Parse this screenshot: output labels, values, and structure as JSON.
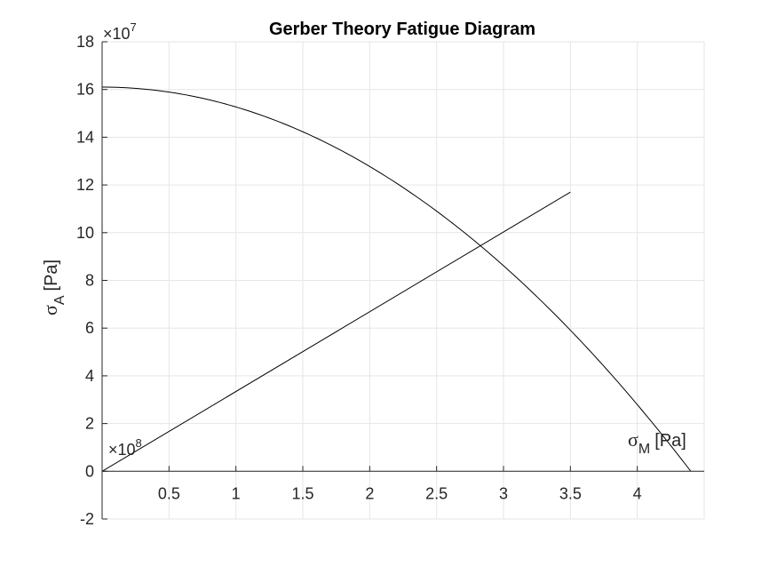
{
  "chart_data": {
    "type": "line",
    "title": "Gerber Theory Fatigue Diagram",
    "xlabel": {
      "symbol": "σ",
      "subscript": "M",
      "unit": "[Pa]"
    },
    "ylabel": {
      "symbol": "σ",
      "subscript": "A",
      "unit": "[Pa]"
    },
    "x_multiplier": {
      "prefix": "×10",
      "exponent": "8"
    },
    "y_multiplier": {
      "prefix": "×10",
      "exponent": "7"
    },
    "xlim": [
      0,
      4.5
    ],
    "ylim": [
      -2,
      18
    ],
    "xticks": [
      0.5,
      1,
      1.5,
      2,
      2.5,
      3,
      3.5,
      4
    ],
    "xtick_labels": [
      "0.5",
      "1",
      "1.5",
      "2",
      "2.5",
      "3",
      "3.5",
      "4"
    ],
    "yticks": [
      -2,
      0,
      2,
      4,
      6,
      8,
      10,
      12,
      14,
      16,
      18
    ],
    "ytick_labels": [
      "-2",
      "0",
      "2",
      "4",
      "6",
      "8",
      "10",
      "12",
      "14",
      "16",
      "18"
    ],
    "grid": true,
    "axis_color": "#262626",
    "grid_color": "#e6e6e6",
    "line_color": "#000000",
    "series": [
      {
        "kind": "gerber-parabola",
        "sa_at_zero": 16.1,
        "sm_at_zero": 4.4,
        "x_range": [
          0,
          4.4
        ]
      },
      {
        "kind": "load-line",
        "x": [
          0,
          3.5
        ],
        "y": [
          0,
          11.7
        ]
      }
    ]
  }
}
